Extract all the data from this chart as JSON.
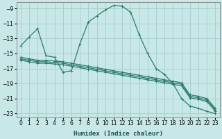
{
  "background_color": "#c8e8e8",
  "grid_color": "#a8d0d0",
  "line_color": "#2a7a6a",
  "xlabel": "Humidex (Indice chaleur)",
  "xlim": [
    -0.5,
    23.5
  ],
  "ylim": [
    -23.5,
    -8.2
  ],
  "xticks": [
    0,
    1,
    2,
    3,
    4,
    5,
    6,
    7,
    8,
    9,
    10,
    11,
    12,
    13,
    14,
    15,
    16,
    17,
    18,
    19,
    20,
    21,
    22,
    23
  ],
  "yticks": [
    -23,
    -21,
    -19,
    -17,
    -15,
    -13,
    -11,
    -9
  ],
  "main_x": [
    0,
    1,
    2,
    3,
    4,
    5,
    6,
    7,
    8,
    9,
    10,
    11,
    12,
    13,
    14,
    15,
    16,
    17,
    18,
    19,
    20,
    21,
    22,
    23
  ],
  "main_y": [
    -14.0,
    -12.8,
    -11.7,
    -15.3,
    -15.5,
    -17.5,
    -17.3,
    -13.7,
    -10.8,
    -10.0,
    -9.2,
    -8.6,
    -8.7,
    -9.5,
    -12.5,
    -15.0,
    -17.0,
    -17.8,
    -19.0,
    -21.0,
    -22.0,
    -22.3,
    -22.7,
    -23.0
  ],
  "line1_x": [
    0,
    1,
    2,
    3,
    4,
    5,
    6,
    7,
    8,
    9,
    10,
    11,
    12,
    13,
    14,
    15,
    16,
    17,
    18,
    19,
    20,
    21,
    22,
    23
  ],
  "line1_y": [
    -15.5,
    -15.7,
    -15.9,
    -15.9,
    -16.0,
    -16.1,
    -16.3,
    -16.5,
    -16.7,
    -16.9,
    -17.1,
    -17.3,
    -17.5,
    -17.7,
    -17.9,
    -18.1,
    -18.3,
    -18.5,
    -18.7,
    -18.9,
    -20.5,
    -20.7,
    -21.0,
    -22.3
  ],
  "line2_x": [
    0,
    1,
    2,
    3,
    4,
    5,
    6,
    7,
    8,
    9,
    10,
    11,
    12,
    13,
    14,
    15,
    16,
    17,
    18,
    19,
    20,
    21,
    22,
    23
  ],
  "line2_y": [
    -15.7,
    -15.9,
    -16.1,
    -16.1,
    -16.2,
    -16.3,
    -16.5,
    -16.7,
    -16.9,
    -17.1,
    -17.3,
    -17.5,
    -17.7,
    -17.9,
    -18.1,
    -18.3,
    -18.5,
    -18.7,
    -18.9,
    -19.1,
    -20.7,
    -20.9,
    -21.2,
    -22.5
  ],
  "line3_x": [
    0,
    1,
    2,
    3,
    4,
    5,
    6,
    7,
    8,
    9,
    10,
    11,
    12,
    13,
    14,
    15,
    16,
    17,
    18,
    19,
    20,
    21,
    22,
    23
  ],
  "line3_y": [
    -15.9,
    -16.1,
    -16.3,
    -16.3,
    -16.4,
    -16.5,
    -16.7,
    -16.9,
    -17.1,
    -17.3,
    -17.5,
    -17.7,
    -17.9,
    -18.1,
    -18.3,
    -18.5,
    -18.7,
    -18.9,
    -19.1,
    -19.3,
    -20.9,
    -21.1,
    -21.4,
    -22.7
  ]
}
